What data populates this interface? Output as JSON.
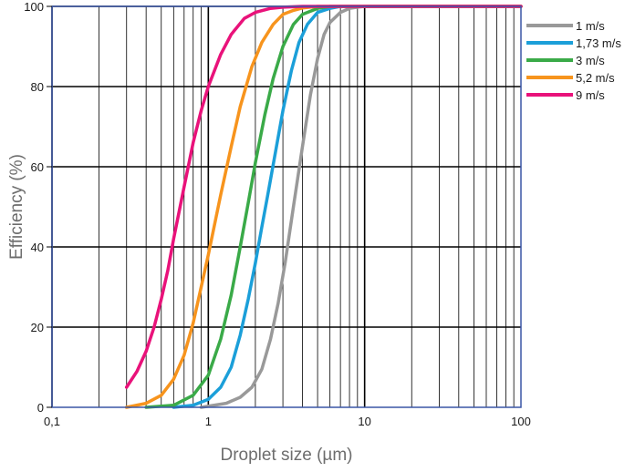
{
  "chart_data": {
    "type": "line",
    "title": "",
    "xlabel": "Droplet size (µm)",
    "ylabel": "Efficiency (%)",
    "x_scale": "log",
    "xlim": [
      0.1,
      100
    ],
    "ylim": [
      0,
      100
    ],
    "x_ticks": [
      {
        "value": 0.1,
        "label": "0,1"
      },
      {
        "value": 1,
        "label": "1"
      },
      {
        "value": 10,
        "label": "10"
      },
      {
        "value": 100,
        "label": "100"
      }
    ],
    "y_ticks": [
      {
        "value": 0,
        "label": "0"
      },
      {
        "value": 20,
        "label": "20"
      },
      {
        "value": 40,
        "label": "40"
      },
      {
        "value": 60,
        "label": "60"
      },
      {
        "value": 80,
        "label": "80"
      },
      {
        "value": 100,
        "label": "100"
      }
    ],
    "grid": true,
    "legend_position": "top-right outside",
    "series": [
      {
        "name": "1 m/s",
        "color": "#999999",
        "x": [
          0.9,
          1.3,
          1.6,
          1.9,
          2.2,
          2.5,
          2.8,
          3.1,
          3.5,
          4.0,
          4.5,
          5.0,
          5.5,
          6.0,
          7.0,
          8.0,
          9.0,
          10,
          20,
          50,
          100
        ],
        "y": [
          0,
          1,
          2.5,
          5,
          9.5,
          17,
          26,
          36,
          50,
          65,
          78,
          87,
          93,
          96,
          98.5,
          99.5,
          99.8,
          100,
          100,
          100,
          100
        ]
      },
      {
        "name": "1,73 m/s",
        "color": "#1b9fd9",
        "x": [
          0.6,
          0.8,
          1.0,
          1.2,
          1.4,
          1.6,
          1.8,
          2.0,
          2.2,
          2.4,
          2.7,
          3.0,
          3.4,
          3.8,
          4.3,
          5.0,
          6.0,
          7.0,
          10,
          50,
          100
        ],
        "y": [
          0,
          0.5,
          2,
          5,
          10,
          18,
          27,
          36,
          45,
          53,
          64,
          74,
          84,
          91,
          95.5,
          98.5,
          99.5,
          100,
          100,
          100,
          100
        ]
      },
      {
        "name": "3 m/s",
        "color": "#3aaa48",
        "x": [
          0.4,
          0.6,
          0.8,
          1.0,
          1.2,
          1.4,
          1.6,
          1.8,
          2.0,
          2.3,
          2.6,
          3.0,
          3.5,
          4.0,
          5.0,
          6.0,
          10,
          50,
          100
        ],
        "y": [
          0,
          0.5,
          3,
          8,
          17,
          28,
          40,
          51,
          61,
          73,
          82,
          90,
          95.5,
          98,
          99.5,
          100,
          100,
          100,
          100
        ]
      },
      {
        "name": "5,2 m/s",
        "color": "#f7941d",
        "x": [
          0.3,
          0.4,
          0.5,
          0.6,
          0.7,
          0.8,
          0.9,
          1.0,
          1.2,
          1.4,
          1.6,
          1.9,
          2.2,
          2.6,
          3.0,
          3.5,
          4.0,
          5.0,
          10,
          50,
          100
        ],
        "y": [
          0,
          1,
          3,
          7,
          13,
          21,
          30,
          38,
          53,
          65,
          75,
          85,
          91,
          95.5,
          98,
          99,
          99.6,
          100,
          100,
          100,
          100
        ]
      },
      {
        "name": "9 m/s",
        "color": "#e9127a",
        "x": [
          0.3,
          0.35,
          0.4,
          0.45,
          0.5,
          0.55,
          0.6,
          0.7,
          0.8,
          0.9,
          1.0,
          1.2,
          1.4,
          1.7,
          2.0,
          2.5,
          3.0,
          4.0,
          10,
          50,
          100
        ],
        "y": [
          5,
          9,
          14,
          20,
          27,
          34,
          42,
          55,
          66,
          74,
          80,
          88,
          93,
          97,
          98.5,
          99.5,
          99.8,
          100,
          100,
          100,
          100
        ]
      }
    ]
  }
}
